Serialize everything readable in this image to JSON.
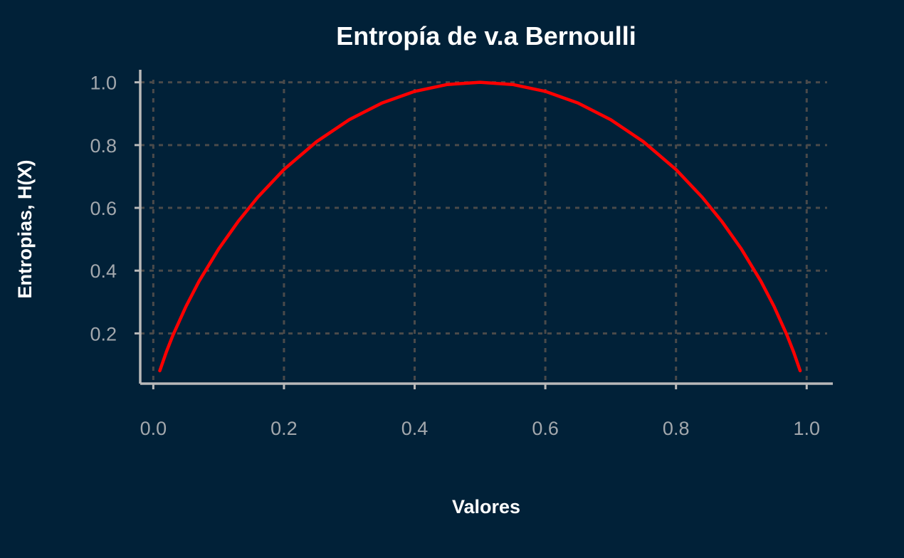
{
  "chart_data": {
    "type": "line",
    "title": "Entropía de v.a Bernoulli",
    "xlabel": "Valores",
    "ylabel": "Entropias, H(X)",
    "xlim": [
      -0.02,
      1.04
    ],
    "ylim": [
      0.04,
      1.04
    ],
    "grid": true,
    "x_ticks": [
      {
        "value": 0.0,
        "label": "0.0"
      },
      {
        "value": 0.2,
        "label": "0.2"
      },
      {
        "value": 0.4,
        "label": "0.4"
      },
      {
        "value": 0.6,
        "label": "0.6"
      },
      {
        "value": 0.8,
        "label": "0.8"
      },
      {
        "value": 1.0,
        "label": "1.0"
      }
    ],
    "y_ticks": [
      {
        "value": 0.2,
        "label": "0.2"
      },
      {
        "value": 0.4,
        "label": "0.4"
      },
      {
        "value": 0.6,
        "label": "0.6"
      },
      {
        "value": 0.8,
        "label": "0.8"
      },
      {
        "value": 1.0,
        "label": "1.0"
      }
    ],
    "series": [
      {
        "color": "#ff0000",
        "x": [
          0.01,
          0.02,
          0.03,
          0.05,
          0.07,
          0.1,
          0.13,
          0.16,
          0.2,
          0.25,
          0.3,
          0.35,
          0.4,
          0.45,
          0.5,
          0.55,
          0.6,
          0.65,
          0.7,
          0.75,
          0.8,
          0.84,
          0.87,
          0.9,
          0.93,
          0.95,
          0.97,
          0.98,
          0.99
        ],
        "y": [
          0.081,
          0.141,
          0.194,
          0.286,
          0.366,
          0.469,
          0.557,
          0.634,
          0.722,
          0.811,
          0.881,
          0.934,
          0.971,
          0.993,
          1.0,
          0.993,
          0.971,
          0.934,
          0.881,
          0.811,
          0.722,
          0.634,
          0.557,
          0.469,
          0.366,
          0.286,
          0.194,
          0.141,
          0.081
        ]
      }
    ]
  }
}
